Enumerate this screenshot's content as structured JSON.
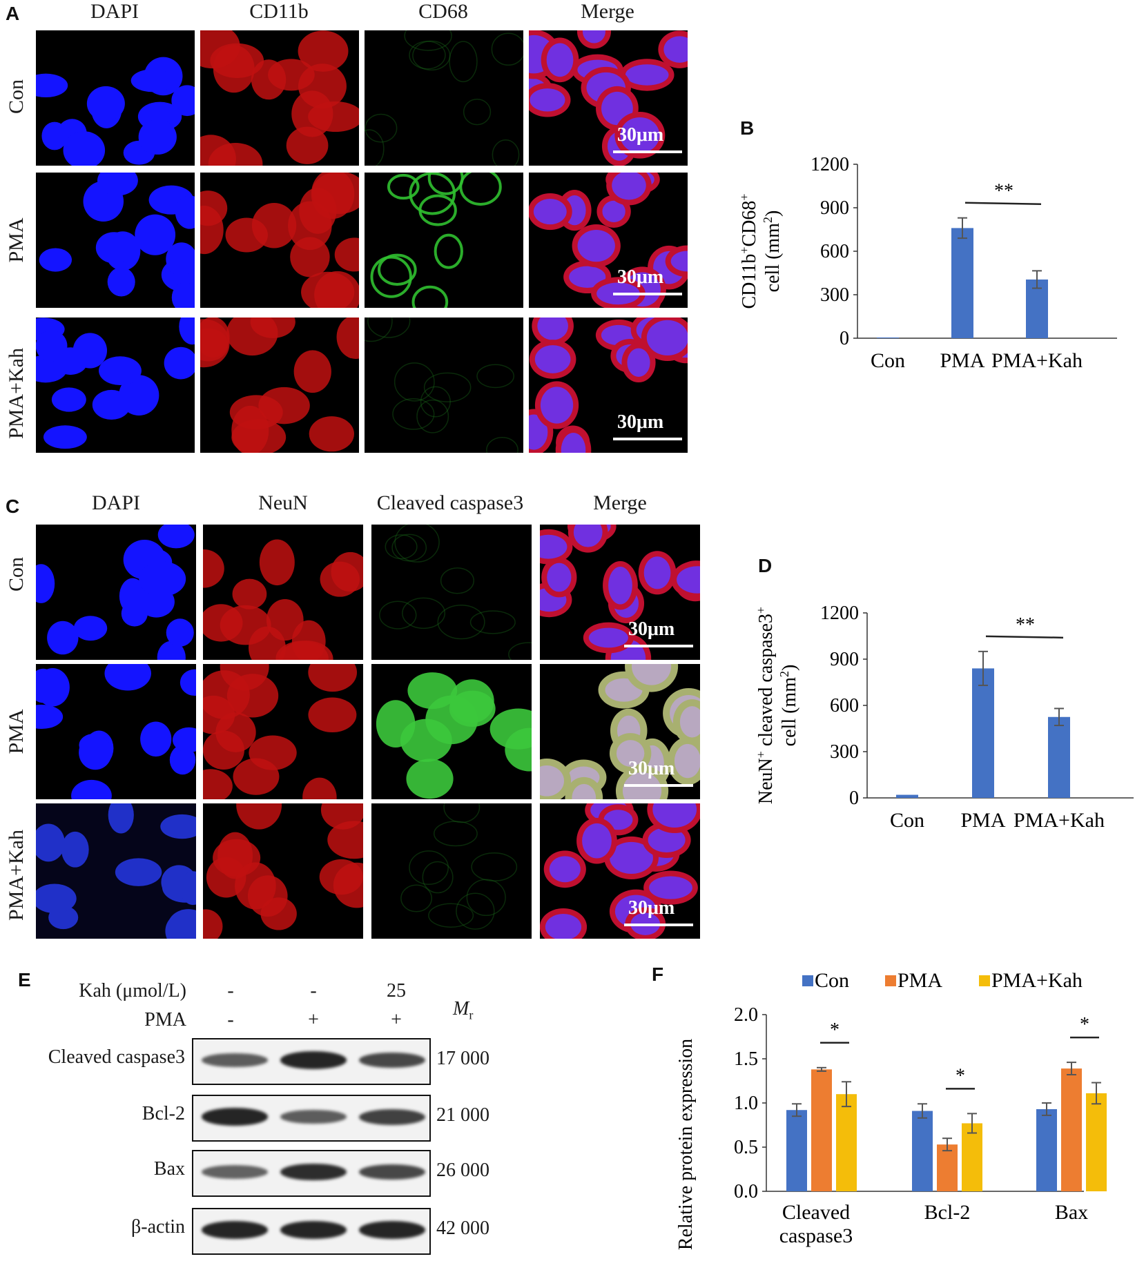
{
  "panels": {
    "A": {
      "letter": "A",
      "columns": [
        "DAPI",
        "CD11b",
        "CD68",
        "Merge"
      ],
      "rows": [
        "Con",
        "PMA",
        "PMA+Kah"
      ],
      "scale_label": "30μm"
    },
    "C": {
      "letter": "C",
      "columns": [
        "DAPI",
        "NeuN",
        "Cleaved caspase3",
        "Merge"
      ],
      "rows": [
        "Con",
        "PMA",
        "PMA+Kah"
      ],
      "scale_label": "30μm"
    },
    "E": {
      "letter": "E",
      "row_labels": {
        "kah": "Kah (μmol/L)",
        "pma": "PMA"
      },
      "kah_signs": [
        "-",
        "-",
        "25"
      ],
      "pma_signs": [
        "-",
        "+",
        "+"
      ],
      "mr_label": "M",
      "mr_sub": "r",
      "bands": [
        {
          "label": "Cleaved caspase3",
          "mr": "17 000"
        },
        {
          "label": "Bcl-2",
          "mr": "21 000"
        },
        {
          "label": "Bax",
          "mr": "26 000"
        },
        {
          "label": "β-actin",
          "mr": "42 000"
        }
      ]
    }
  },
  "chart_data": [
    {
      "panel": "B",
      "type": "bar",
      "categories": [
        "Con",
        "PMA",
        "PMA+Kah"
      ],
      "values": [
        5,
        760,
        405
      ],
      "errors": [
        0,
        70,
        60
      ],
      "ylabel_line1": "CD11b",
      "ylabel_sup1": "+",
      "ylabel_mid": "CD68",
      "ylabel_sup2": "+",
      "ylabel_line2": "cell (mm",
      "ylabel_sup3": "2",
      "ylabel_end": ")",
      "ylim": [
        0,
        1200
      ],
      "yticks": [
        "0",
        "300",
        "600",
        "900",
        "1200"
      ],
      "significance": {
        "from": 1,
        "to": 2,
        "label": "**"
      },
      "color": "#4472c4"
    },
    {
      "panel": "D",
      "type": "bar",
      "categories": [
        "Con",
        "PMA",
        "PMA+Kah"
      ],
      "values": [
        20,
        840,
        525
      ],
      "errors": [
        0,
        110,
        55
      ],
      "ylabel_line1": "NeuN",
      "ylabel_sup1": "+",
      "ylabel_mid": " cleaved caspase3",
      "ylabel_sup2": "+",
      "ylabel_line2": "cell (mm",
      "ylabel_sup3": "2",
      "ylabel_end": ")",
      "ylim": [
        0,
        1200
      ],
      "yticks": [
        "0",
        "300",
        "600",
        "900",
        "1200"
      ],
      "significance": {
        "from": 1,
        "to": 2,
        "label": "**"
      },
      "color": "#4472c4"
    },
    {
      "panel": "F",
      "type": "bar",
      "categories": [
        "Cleaved caspase3",
        "Bcl-2",
        "Bax"
      ],
      "category_lines": [
        [
          "Cleaved",
          "caspase3"
        ],
        [
          "Bcl-2"
        ],
        [
          "Bax"
        ]
      ],
      "series": [
        {
          "name": "Con",
          "values": [
            0.92,
            0.91,
            0.93
          ],
          "errors": [
            0.07,
            0.08,
            0.07
          ],
          "color": "#4472c4"
        },
        {
          "name": "PMA",
          "values": [
            1.38,
            0.53,
            1.39
          ],
          "errors": [
            0.02,
            0.07,
            0.07
          ],
          "color": "#ed7d31"
        },
        {
          "name": "PMA+Kah",
          "values": [
            1.1,
            0.77,
            1.11
          ],
          "errors": [
            0.14,
            0.11,
            0.12
          ],
          "color": "#f4bd0a"
        }
      ],
      "ylabel": "Relative protein expression",
      "ylim": [
        0,
        2.0
      ],
      "yticks": [
        "0.0",
        "0.5",
        "1.0",
        "1.5",
        "2.0"
      ],
      "significance_label": "*",
      "legend": "top"
    }
  ],
  "chart_letters": {
    "B": "B",
    "D": "D",
    "F": "F"
  }
}
